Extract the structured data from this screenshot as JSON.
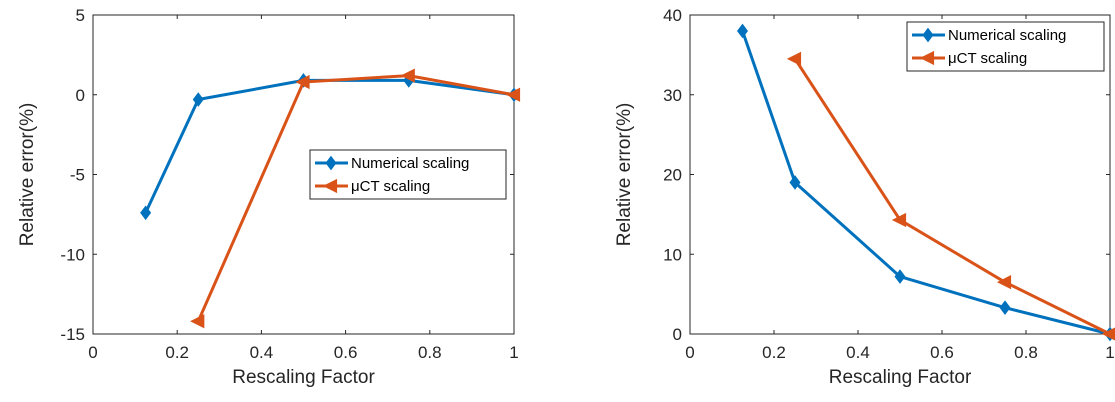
{
  "chart_data": [
    {
      "type": "line",
      "title": "",
      "xlabel": "Rescaling Factor",
      "ylabel": "Relative error(%)",
      "xlim": [
        0,
        1
      ],
      "ylim": [
        -15,
        5
      ],
      "xticks": [
        0,
        0.2,
        0.4,
        0.6,
        0.8,
        1
      ],
      "xtick_labels": [
        "0",
        "0.2",
        "0.4",
        "0.6",
        "0.8",
        "1"
      ],
      "yticks": [
        -15,
        -10,
        -5,
        0,
        5
      ],
      "ytick_labels": [
        "-15",
        "-10",
        "-5",
        "0",
        "5"
      ],
      "grid": false,
      "legend_position": "center-right",
      "series": [
        {
          "name": "Numerical scaling",
          "color": "#0072BD",
          "marker": "diamond",
          "x": [
            0.125,
            0.25,
            0.5,
            0.75,
            1
          ],
          "y": [
            -7.4,
            -0.3,
            0.9,
            0.9,
            0.0
          ]
        },
        {
          "name": "μCT scaling",
          "color": "#D95319",
          "marker": "left-triangle",
          "x": [
            0.25,
            0.5,
            0.75,
            1
          ],
          "y": [
            -14.2,
            0.8,
            1.2,
            0.0
          ]
        }
      ]
    },
    {
      "type": "line",
      "title": "",
      "xlabel": "Rescaling Factor",
      "ylabel": "Relative error(%)",
      "xlim": [
        0,
        1
      ],
      "ylim": [
        0,
        40
      ],
      "xticks": [
        0,
        0.2,
        0.4,
        0.6,
        0.8,
        1
      ],
      "xtick_labels": [
        "0",
        "0.2",
        "0.4",
        "0.6",
        "0.8",
        "1"
      ],
      "yticks": [
        0,
        10,
        20,
        30,
        40
      ],
      "ytick_labels": [
        "0",
        "10",
        "20",
        "30",
        "40"
      ],
      "grid": false,
      "legend_position": "top-right",
      "series": [
        {
          "name": "Numerical scaling",
          "color": "#0072BD",
          "marker": "diamond",
          "x": [
            0.125,
            0.25,
            0.5,
            0.75,
            1
          ],
          "y": [
            38.0,
            19.0,
            7.2,
            3.3,
            0.0
          ]
        },
        {
          "name": "μCT scaling",
          "color": "#D95319",
          "marker": "left-triangle",
          "x": [
            0.25,
            0.5,
            0.75,
            1
          ],
          "y": [
            34.5,
            14.3,
            6.5,
            0.0
          ]
        }
      ]
    }
  ]
}
